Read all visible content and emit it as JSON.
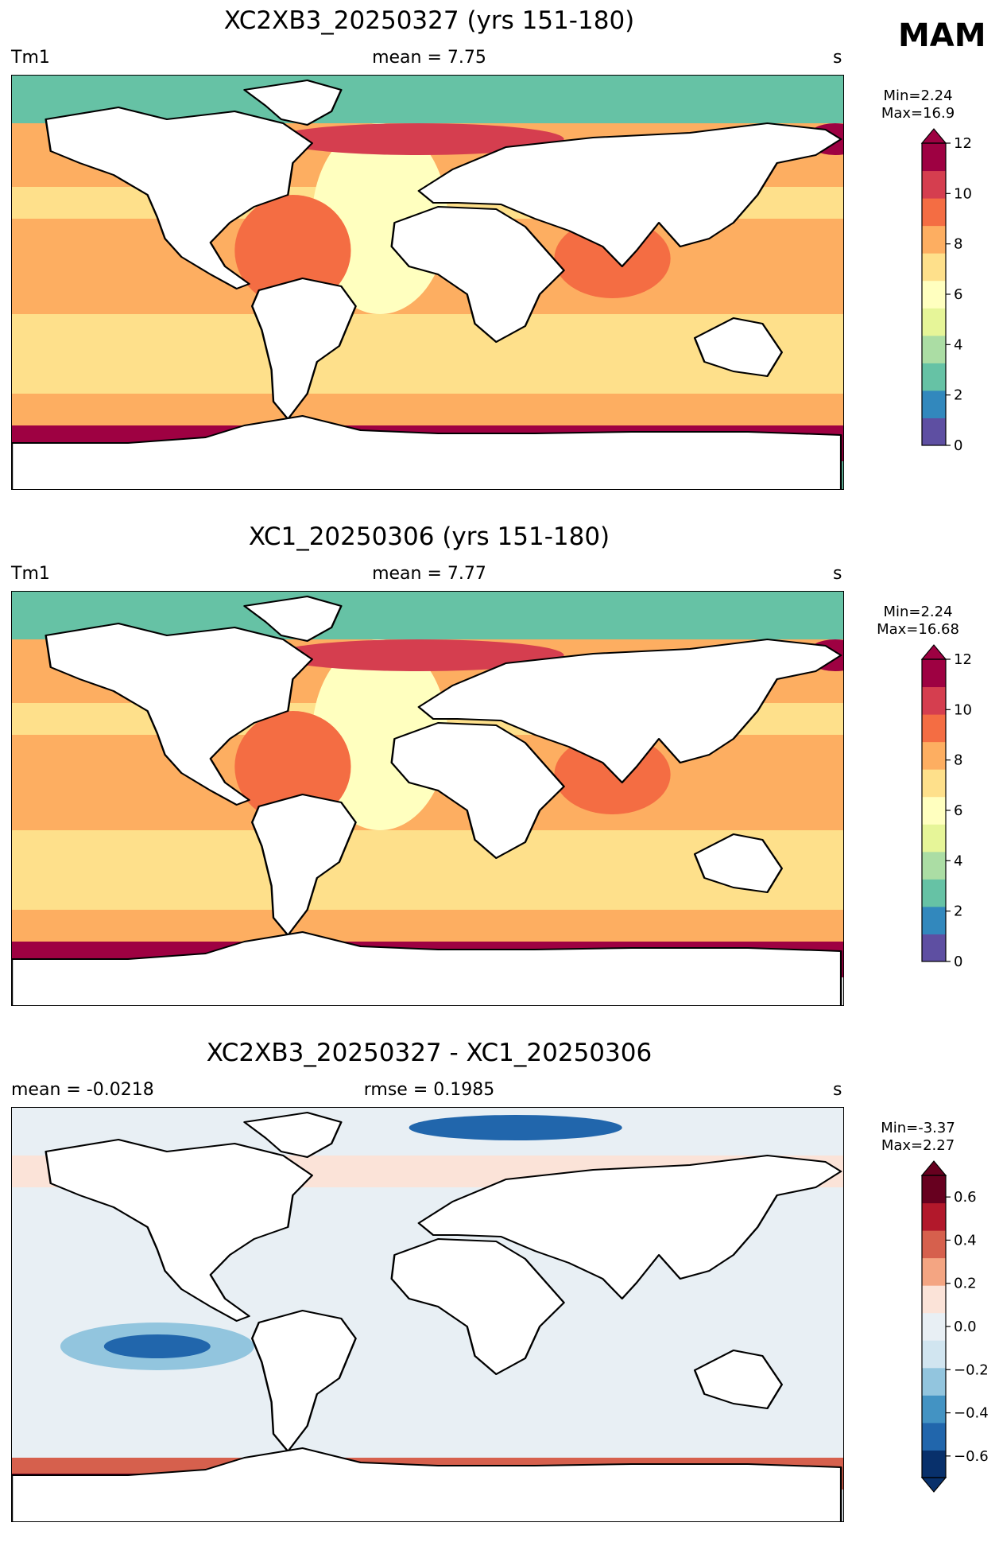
{
  "season": "MAM",
  "panels": [
    {
      "title": "XC2XB3_20250327 (yrs 151-180)",
      "left_label": "Tm1",
      "center_label": "mean = 7.75",
      "right_label": "s",
      "min_text": "Min=2.24",
      "max_text": "Max=16.9",
      "colorbar": {
        "type": "absolute",
        "range": [
          0,
          12
        ],
        "ticks": [
          "0",
          "2",
          "4",
          "6",
          "8",
          "10",
          "12"
        ],
        "colors": [
          "#5e4fa2",
          "#3288bd",
          "#66c2a5",
          "#abdda4",
          "#e6f598",
          "#ffffbf",
          "#fee08b",
          "#fdae61",
          "#f46d43",
          "#d53e4f",
          "#9e0142"
        ]
      }
    },
    {
      "title": "XC1_20250306 (yrs 151-180)",
      "left_label": "Tm1",
      "center_label": "mean = 7.77",
      "right_label": "s",
      "min_text": "Min=2.24",
      "max_text": "Max=16.68",
      "colorbar": {
        "type": "absolute",
        "range": [
          0,
          12
        ],
        "ticks": [
          "0",
          "2",
          "4",
          "6",
          "8",
          "10",
          "12"
        ],
        "colors": [
          "#5e4fa2",
          "#3288bd",
          "#66c2a5",
          "#abdda4",
          "#e6f598",
          "#ffffbf",
          "#fee08b",
          "#fdae61",
          "#f46d43",
          "#d53e4f",
          "#9e0142"
        ]
      }
    },
    {
      "title": "XC2XB3_20250327 - XC1_20250306",
      "left_label": "mean = -0.0218",
      "center_label": "rmse = 0.1985",
      "right_label": "s",
      "min_text": "Min=-3.37",
      "max_text": "Max=2.27",
      "colorbar": {
        "type": "difference",
        "range": [
          -0.7,
          0.7
        ],
        "ticks": [
          "−0.6",
          "−0.4",
          "−0.2",
          "0.0",
          "0.2",
          "0.4",
          "0.6"
        ],
        "colors": [
          "#08306b",
          "#2166ac",
          "#4393c3",
          "#92c5de",
          "#d1e5f0",
          "#e8eff4",
          "#fbe3d8",
          "#f4a582",
          "#d6604d",
          "#b2182b",
          "#67001f"
        ]
      }
    }
  ]
}
